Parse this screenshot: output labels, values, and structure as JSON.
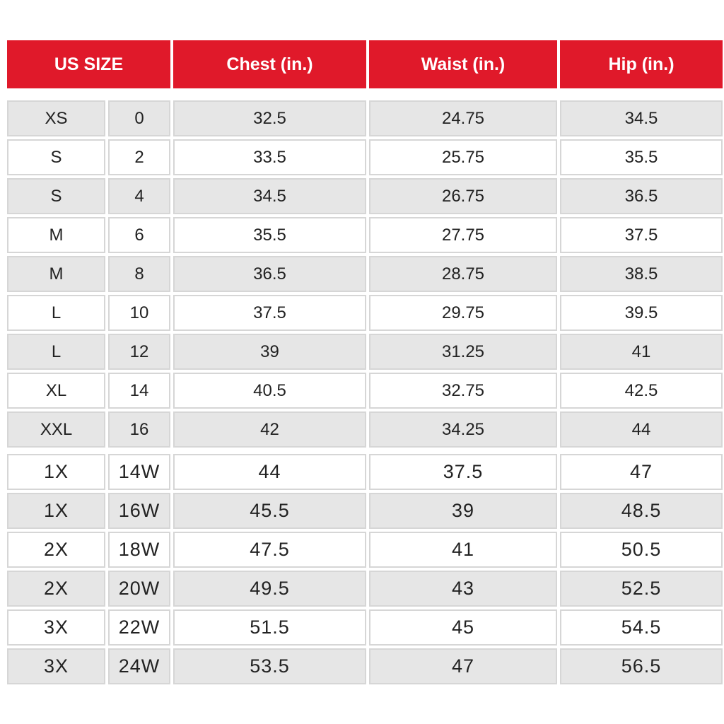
{
  "colors": {
    "header": "#e0192a",
    "row_shaded": "#e6e6e6",
    "row_plain": "#ffffff"
  },
  "headers": [
    "US SIZE",
    "Chest (in.)",
    "Waist (in.)",
    "Hip (in.)"
  ],
  "rows": [
    [
      "XS",
      "0",
      "32.5",
      "24.75",
      "34.5"
    ],
    [
      "S",
      "2",
      "33.5",
      "25.75",
      "35.5"
    ],
    [
      "S",
      "4",
      "34.5",
      "26.75",
      "36.5"
    ],
    [
      "M",
      "6",
      "35.5",
      "27.75",
      "37.5"
    ],
    [
      "M",
      "8",
      "36.5",
      "28.75",
      "38.5"
    ],
    [
      "L",
      "10",
      "37.5",
      "29.75",
      "39.5"
    ],
    [
      "L",
      "12",
      "39",
      "31.25",
      "41"
    ],
    [
      "XL",
      "14",
      "40.5",
      "32.75",
      "42.5"
    ],
    [
      "XXL",
      "16",
      "42",
      "34.25",
      "44"
    ],
    [
      "1X",
      "14W",
      "44",
      "37.5",
      "47"
    ],
    [
      "1X",
      "16W",
      "45.5",
      "39",
      "48.5"
    ],
    [
      "2X",
      "18W",
      "47.5",
      "41",
      "50.5"
    ],
    [
      "2X",
      "20W",
      "49.5",
      "43",
      "52.5"
    ],
    [
      "3X",
      "22W",
      "51.5",
      "45",
      "54.5"
    ],
    [
      "3X",
      "24W",
      "53.5",
      "47",
      "56.5"
    ]
  ]
}
